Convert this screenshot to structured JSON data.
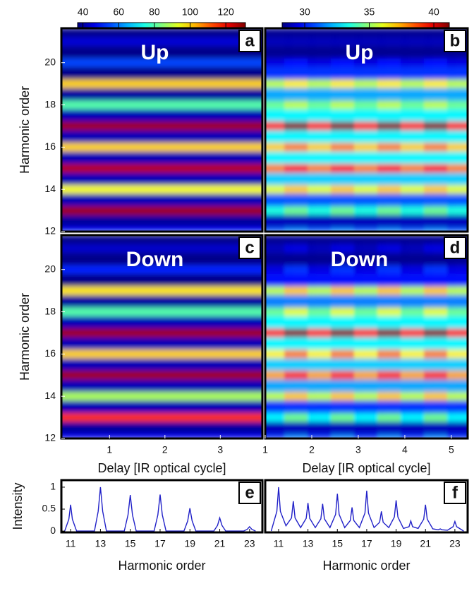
{
  "chart_data": [
    {
      "type": "heatmap",
      "label": "a",
      "annotation": "Up",
      "ylabel": "Harmonic order",
      "xlim": [
        0.13,
        3.76
      ],
      "ylim": [
        12,
        21.63
      ],
      "yticks": [
        12,
        14,
        16,
        18,
        20
      ],
      "clim": [
        37,
        131
      ],
      "colorbar_ticks": [
        40,
        60,
        80,
        100,
        120
      ],
      "xbins": [
        0.13,
        3.76
      ],
      "ybins": [
        12,
        12.2,
        12.8,
        13.2,
        13.8,
        14.2,
        14.8,
        15.2,
        15.8,
        16.2,
        16.8,
        17.2,
        17.8,
        18.2,
        18.8,
        19.2,
        19.8,
        20.2,
        20.8,
        21.2,
        21.63
      ],
      "z": [
        [
          50
        ],
        [
          40
        ],
        [
          128
        ],
        [
          42
        ],
        [
          95
        ],
        [
          42
        ],
        [
          126
        ],
        [
          42
        ],
        [
          100
        ],
        [
          42
        ],
        [
          128
        ],
        [
          42
        ],
        [
          80
        ],
        [
          40
        ],
        [
          100
        ],
        [
          38
        ],
        [
          55
        ],
        [
          38
        ],
        [
          45
        ],
        [
          38
        ]
      ]
    },
    {
      "type": "heatmap",
      "label": "b",
      "annotation": "Up",
      "xlim": [
        1,
        5.35
      ],
      "ylim": [
        12,
        21.63
      ],
      "clim": [
        28.25,
        41.2
      ],
      "colorbar_ticks": [
        30,
        35,
        40
      ],
      "xbins": [
        1,
        1.5,
        2,
        2.5,
        3,
        3.5,
        4,
        4.5,
        5,
        5.35
      ],
      "ybins": [
        12,
        12.2,
        12.8,
        13.2,
        13.8,
        14.2,
        14.8,
        15.2,
        15.8,
        16.2,
        16.8,
        17.2,
        17.8,
        18.2,
        18.8,
        19.2,
        19.8,
        20.2,
        20.8,
        21.2,
        21.63
      ],
      "z": [
        [
          31,
          31.5,
          31,
          31.5,
          31,
          31.5,
          31,
          31.5,
          31
        ],
        [
          29,
          29,
          29,
          29,
          29,
          29,
          29,
          29,
          29
        ],
        [
          33.5,
          34.5,
          33.5,
          34.5,
          33.5,
          34.5,
          33.5,
          34.5,
          33.5
        ],
        [
          31,
          31,
          31,
          31,
          31,
          31,
          31,
          31,
          31
        ],
        [
          36,
          37,
          36,
          37,
          36,
          37,
          36,
          37,
          36
        ],
        [
          32.5,
          32.5,
          32.5,
          32.5,
          32.5,
          32.5,
          32.5,
          32.5,
          32.5
        ],
        [
          38,
          39.5,
          38,
          39.5,
          38,
          39.5,
          38,
          39.5,
          38
        ],
        [
          33,
          33,
          33,
          33,
          33,
          33,
          33,
          33,
          33
        ],
        [
          37,
          38,
          37,
          38,
          37,
          38,
          37,
          38,
          37
        ],
        [
          33,
          33,
          33,
          33,
          33,
          33,
          33,
          33,
          33
        ],
        [
          39.5,
          41,
          39.5,
          41,
          39.5,
          41,
          39.5,
          41,
          39.5
        ],
        [
          33,
          33,
          33,
          33,
          33,
          33,
          33,
          33,
          33
        ],
        [
          34.5,
          35.5,
          34.5,
          35.5,
          34.5,
          35.5,
          34.5,
          35.5,
          34.5
        ],
        [
          32,
          32,
          32,
          32,
          32,
          32,
          32,
          32,
          32
        ],
        [
          35.5,
          36.5,
          35.5,
          36.5,
          35.5,
          36.5,
          35.5,
          36.5,
          35.5
        ],
        [
          30.5,
          30.5,
          30.5,
          30.5,
          30.5,
          30.5,
          30.5,
          30.5,
          30.5
        ],
        [
          29.5,
          30,
          29.5,
          30,
          29.5,
          30,
          29.5,
          30,
          29.5
        ],
        [
          28.5,
          28.5,
          28.5,
          28.5,
          28.5,
          28.5,
          28.5,
          28.5,
          28.5
        ],
        [
          29,
          29,
          29,
          29,
          29,
          29,
          29,
          29,
          29
        ],
        [
          28.5,
          28.5,
          28.5,
          28.5,
          28.5,
          28.5,
          28.5,
          28.5,
          28.5
        ]
      ]
    },
    {
      "type": "heatmap",
      "label": "c",
      "annotation": "Down",
      "ylabel": "Harmonic order",
      "xlabel": "Delay [IR optical cycle]",
      "xlim": [
        0.13,
        3.76
      ],
      "ylim": [
        12,
        21.63
      ],
      "yticks": [
        12,
        14,
        16,
        18,
        20
      ],
      "xticks": [
        1,
        2,
        3
      ],
      "clim": [
        37,
        131
      ],
      "xbins": [
        0.13,
        3.76
      ],
      "ybins": [
        12,
        12.2,
        12.8,
        13.2,
        13.8,
        14.2,
        14.8,
        15.2,
        15.8,
        16.2,
        16.8,
        17.2,
        17.8,
        18.2,
        18.8,
        19.2,
        19.8,
        20.2,
        20.8,
        21.2,
        21.63
      ],
      "z": [
        [
          48
        ],
        [
          40
        ],
        [
          115
        ],
        [
          42
        ],
        [
          88
        ],
        [
          42
        ],
        [
          128
        ],
        [
          42
        ],
        [
          100
        ],
        [
          42
        ],
        [
          128
        ],
        [
          42
        ],
        [
          80
        ],
        [
          40
        ],
        [
          98
        ],
        [
          38
        ],
        [
          52
        ],
        [
          38
        ],
        [
          44
        ],
        [
          38
        ]
      ]
    },
    {
      "type": "heatmap",
      "label": "d",
      "annotation": "Down",
      "xlabel": "Delay [IR optical cycle]",
      "xlim": [
        1,
        5.35
      ],
      "ylim": [
        12,
        21.63
      ],
      "xticks": [
        1,
        2,
        3,
        4,
        5
      ],
      "clim": [
        28.25,
        41.2
      ],
      "xbins": [
        1,
        1.5,
        2,
        2.5,
        3,
        3.5,
        4,
        4.5,
        5,
        5.35
      ],
      "ybins": [
        12,
        12.2,
        12.8,
        13.2,
        13.8,
        14.2,
        14.8,
        15.2,
        15.8,
        16.2,
        16.8,
        17.2,
        17.8,
        18.2,
        18.8,
        19.2,
        19.8,
        20.2,
        20.8,
        21.2,
        21.63
      ],
      "z": [
        [
          30.5,
          31.5,
          30.5,
          31.5,
          30.5,
          31.5,
          30.5,
          31.5,
          30.5
        ],
        [
          29,
          29,
          29,
          29,
          29,
          29,
          29,
          29,
          29
        ],
        [
          33,
          34.5,
          33,
          34.5,
          33,
          34.5,
          33,
          34.5,
          33
        ],
        [
          30.5,
          30.5,
          30.5,
          30.5,
          30.5,
          30.5,
          30.5,
          30.5,
          30.5
        ],
        [
          35.5,
          37,
          35.5,
          37,
          35.5,
          37,
          35.5,
          37,
          35.5
        ],
        [
          32,
          32,
          32,
          32,
          32,
          32,
          32,
          32,
          32
        ],
        [
          37.5,
          39,
          37.5,
          39,
          37.5,
          39,
          37.5,
          39,
          37.5
        ],
        [
          32.5,
          32.5,
          32.5,
          32.5,
          32.5,
          32.5,
          32.5,
          32.5,
          32.5
        ],
        [
          36.5,
          38,
          36.5,
          38,
          36.5,
          38,
          36.5,
          38,
          36.5
        ],
        [
          33,
          33,
          33,
          33,
          33,
          33,
          33,
          33,
          33
        ],
        [
          39.5,
          41,
          39.5,
          41,
          39.5,
          41,
          39.5,
          41,
          39.5
        ],
        [
          33,
          33,
          33,
          33,
          33,
          33,
          33,
          33,
          33
        ],
        [
          34.5,
          36,
          34.5,
          36,
          34.5,
          36,
          34.5,
          36,
          34.5
        ],
        [
          31.5,
          31.5,
          31.5,
          31.5,
          31.5,
          31.5,
          31.5,
          31.5,
          31.5
        ],
        [
          35.5,
          37,
          35.5,
          37,
          35.5,
          37,
          35.5,
          37,
          35.5
        ],
        [
          30,
          30,
          30,
          30,
          30,
          30,
          30,
          30,
          30
        ],
        [
          29.5,
          30.5,
          29.5,
          30.5,
          29.5,
          30.5,
          29.5,
          30.5,
          29.5
        ],
        [
          28.5,
          28.5,
          28.5,
          28.5,
          28.5,
          28.5,
          28.5,
          28.5,
          28.5
        ],
        [
          29,
          29.5,
          29,
          29.5,
          29,
          29.5,
          29,
          29.5,
          29
        ],
        [
          28.5,
          28.5,
          28.5,
          28.5,
          28.5,
          28.5,
          28.5,
          28.5,
          28.5
        ]
      ]
    },
    {
      "type": "line",
      "label": "e",
      "ylabel": "Intensity",
      "xlabel": "Harmonic order",
      "color": "#2020c8",
      "xlim": [
        10.38,
        23.86
      ],
      "ylim": [
        -0.03,
        1.16
      ],
      "xticks": [
        11,
        13,
        15,
        17,
        19,
        21,
        23
      ],
      "yticks": [
        0,
        0.5,
        1
      ],
      "x": [
        10.6,
        10.88,
        11,
        11.12,
        11.4,
        12.6,
        12.85,
        13,
        13.15,
        13.4,
        14.6,
        14.85,
        15,
        15.15,
        15.4,
        16.6,
        16.85,
        17,
        17.15,
        17.4,
        18.6,
        18.85,
        19,
        19.15,
        19.4,
        20.6,
        20.85,
        21,
        21.15,
        21.4,
        22.6,
        22.85,
        23,
        23.15,
        23.4
      ],
      "values": [
        0,
        0.27,
        0.6,
        0.27,
        0,
        0,
        0.45,
        1.0,
        0.45,
        0,
        0,
        0.37,
        0.82,
        0.37,
        0,
        0,
        0.37,
        0.83,
        0.37,
        0,
        0,
        0.23,
        0.52,
        0.23,
        0,
        0,
        0.13,
        0.3,
        0.13,
        0,
        0,
        0.04,
        0.1,
        0.04,
        0
      ]
    },
    {
      "type": "line",
      "label": "f",
      "xlabel": "Harmonic order",
      "color": "#2020c8",
      "xlim": [
        10.09,
        23.87
      ],
      "ylim": [
        -0.03,
        1.16
      ],
      "xticks": [
        11,
        13,
        15,
        17,
        19,
        21,
        23
      ],
      "x": [
        10.5,
        10.88,
        11,
        11.12,
        11.5,
        11.88,
        12,
        12.12,
        12.5,
        12.88,
        13,
        13.12,
        13.5,
        13.88,
        14,
        14.12,
        14.5,
        14.88,
        15,
        15.12,
        15.5,
        15.88,
        16,
        16.12,
        16.5,
        16.88,
        17,
        17.12,
        17.5,
        17.88,
        18,
        18.12,
        18.5,
        18.88,
        19,
        19.12,
        19.5,
        19.88,
        20,
        20.12,
        20.5,
        20.88,
        21,
        21.12,
        21.5,
        21.88,
        22,
        22.12,
        22.5,
        22.88,
        23,
        23.12,
        23.6
      ],
      "values": [
        0,
        0.45,
        1.0,
        0.45,
        0.12,
        0.3,
        0.68,
        0.3,
        0.08,
        0.29,
        0.64,
        0.29,
        0.08,
        0.28,
        0.62,
        0.28,
        0.08,
        0.38,
        0.85,
        0.38,
        0.08,
        0.24,
        0.54,
        0.24,
        0.08,
        0.41,
        0.92,
        0.41,
        0.08,
        0.2,
        0.45,
        0.2,
        0.08,
        0.32,
        0.7,
        0.32,
        0.06,
        0.1,
        0.23,
        0.1,
        0.06,
        0.27,
        0.6,
        0.27,
        0.05,
        0.03,
        0.05,
        0.03,
        0.02,
        0.1,
        0.22,
        0.1,
        0
      ]
    }
  ]
}
